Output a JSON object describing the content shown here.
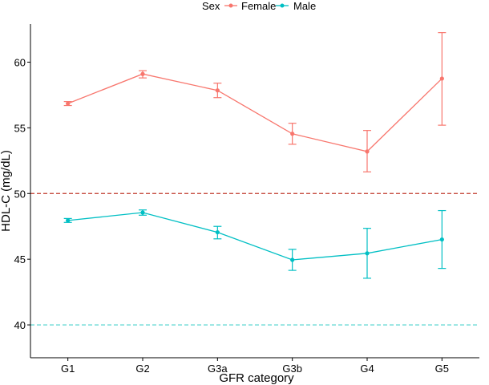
{
  "chart_data": {
    "type": "line",
    "title": "",
    "xlabel": "GFR category",
    "ylabel": "HDL-C (mg/dL)",
    "categories": [
      "G1",
      "G2",
      "G3a",
      "G3b",
      "G4",
      "G5"
    ],
    "ylim": [
      37.5,
      62.9
    ],
    "yticks": [
      40,
      45,
      50,
      55,
      60
    ],
    "legend": {
      "title": "Sex",
      "position": "top",
      "entries": [
        "Female",
        "Male"
      ]
    },
    "series": [
      {
        "name": "Female",
        "color": "#F8766D",
        "values": [
          56.85,
          59.1,
          57.85,
          54.55,
          53.2,
          58.75
        ],
        "err_low": [
          56.7,
          58.8,
          57.3,
          53.75,
          51.65,
          55.2
        ],
        "err_high": [
          57.0,
          59.35,
          58.4,
          55.35,
          54.8,
          62.25
        ]
      },
      {
        "name": "Male",
        "color": "#00BFC4",
        "values": [
          47.95,
          48.55,
          47.05,
          44.95,
          45.45,
          46.5
        ],
        "err_low": [
          47.8,
          48.35,
          46.55,
          44.15,
          43.55,
          44.3
        ],
        "err_high": [
          48.1,
          48.75,
          47.5,
          45.75,
          47.35,
          48.7
        ]
      }
    ],
    "reference_lines": [
      {
        "value": 50,
        "color": "#C0392B",
        "style": "dashed"
      },
      {
        "value": 40,
        "color": "#48D1CC",
        "style": "dashed"
      }
    ]
  }
}
